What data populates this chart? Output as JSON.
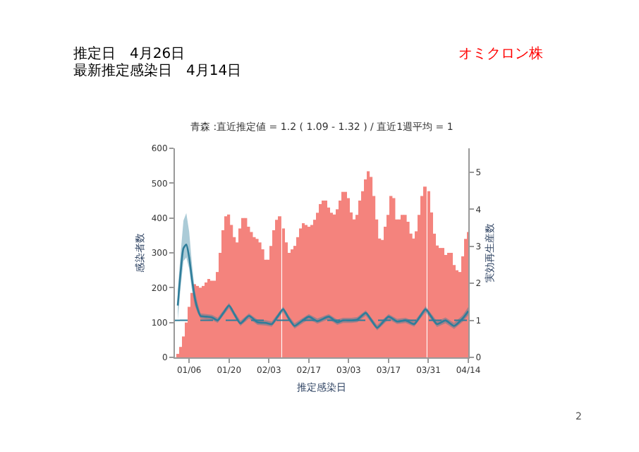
{
  "chart_data": {
    "type": "bar",
    "title": "推定日　4月26日",
    "subtitle": "最新推定感染日　4月14日",
    "annotations": [
      "青森 :直近推定値 = 1.2 ( 1.09 - 1.32 ) / 直近1週平均 = 1",
      "オミクロン株",
      "2"
    ],
    "xlabel": "推定感染日",
    "ylabel": "感染者数",
    "y2label": "実効再生産数",
    "x": [
      "--01-02",
      "--01-03",
      "--01-04",
      "--01-05",
      "--01-06",
      "--01-07",
      "--01-08",
      "--01-09",
      "--01-10",
      "--01-11",
      "--01-12",
      "--01-13",
      "--01-14",
      "--01-15",
      "--01-16",
      "--01-17",
      "--01-18",
      "--01-19",
      "--01-20",
      "--01-21",
      "--01-22",
      "--01-23",
      "--01-24",
      "--01-25",
      "--01-26",
      "--01-27",
      "--01-28",
      "--01-29",
      "--01-30",
      "--01-31",
      "--02-01",
      "--02-02",
      "--02-03",
      "--02-04",
      "--02-05",
      "--02-06",
      "--02-07",
      "--02-08",
      "--02-09",
      "--02-10",
      "--02-11",
      "--02-12",
      "--02-13",
      "--02-14",
      "--02-15",
      "--02-16",
      "--02-17",
      "--02-18",
      "--02-19",
      "--02-20",
      "--02-21",
      "--02-22",
      "--02-23",
      "--02-24",
      "--02-25",
      "--02-26",
      "--02-27",
      "--02-28",
      "--03-01",
      "--03-02",
      "--03-03",
      "--03-04",
      "--03-05",
      "--03-06",
      "--03-07",
      "--03-08",
      "--03-09",
      "--03-10",
      "--03-11",
      "--03-12",
      "--03-13",
      "--03-14",
      "--03-15",
      "--03-16",
      "--03-17",
      "--03-18",
      "--03-19",
      "--03-20",
      "--03-21",
      "--03-22",
      "--03-23",
      "--03-24",
      "--03-25",
      "--03-26",
      "--03-27",
      "--03-28",
      "--03-29",
      "--03-30",
      "--03-31",
      "--04-01",
      "--04-02",
      "--04-03",
      "--04-04",
      "--04-05",
      "--04-06",
      "--04-07",
      "--04-08",
      "--04-09",
      "--04-10",
      "--04-11",
      "--04-12",
      "--04-13",
      "--04-14"
    ],
    "series": [
      {
        "color": "#f4837d",
        "values": [
          10,
          30,
          60,
          100,
          145,
          185,
          210,
          205,
          200,
          205,
          215,
          225,
          220,
          220,
          245,
          300,
          365,
          405,
          410,
          380,
          345,
          330,
          370,
          400,
          400,
          375,
          360,
          345,
          340,
          330,
          310,
          280,
          280,
          320,
          365,
          395,
          405,
          370,
          330,
          300,
          310,
          320,
          345,
          370,
          385,
          380,
          375,
          380,
          395,
          415,
          440,
          450,
          450,
          430,
          415,
          410,
          425,
          450,
          475,
          475,
          457,
          416,
          396,
          409,
          450,
          477,
          511,
          534,
          518,
          463,
          396,
          341,
          337,
          375,
          409,
          463,
          457,
          396,
          396,
          409,
          409,
          389,
          355,
          341,
          362,
          409,
          463,
          490,
          477,
          416,
          355,
          321,
          314,
          314,
          294,
          300,
          300,
          265,
          250,
          245,
          290,
          340,
          360
        ]
      },
      {
        "type": "line",
        "axis": "y2",
        "color": "#2e7d9a",
        "x": [
          "--01-02",
          "--01-03",
          "--01-04",
          "--01-05",
          "--01-06",
          "--01-07",
          "--01-08",
          "--01-09",
          "--01-10",
          "--01-12",
          "--01-14",
          "--01-16",
          "--01-18",
          "--01-20",
          "--01-22",
          "--01-24",
          "--01-27",
          "--01-30",
          "--02-02",
          "--02-04",
          "--02-06",
          "--02-08",
          "--02-10",
          "--02-12",
          "--02-14",
          "--02-17",
          "--02-20",
          "--02-24",
          "--02-27",
          "--03-01",
          "--03-04",
          "--03-06",
          "--03-09",
          "--03-11",
          "--03-13",
          "--03-15",
          "--03-17",
          "--03-20",
          "--03-23",
          "--03-26",
          "--03-28",
          "--03-30",
          "--04-01",
          "--04-03",
          "--04-06",
          "--04-09",
          "--04-12",
          "--04-14"
        ],
        "values": [
          1.4,
          2.3,
          2.95,
          3.05,
          2.7,
          2.1,
          1.6,
          1.3,
          1.12,
          1.1,
          1.08,
          1.0,
          1.2,
          1.4,
          1.15,
          0.92,
          1.12,
          0.95,
          0.93,
          0.9,
          1.1,
          1.3,
          1.05,
          0.85,
          0.95,
          1.1,
          0.98,
          1.1,
          0.95,
          1.0,
          1.0,
          1.02,
          1.2,
          1.0,
          0.8,
          0.95,
          1.1,
          0.97,
          1.0,
          0.9,
          1.1,
          1.3,
          1.1,
          0.9,
          1.0,
          0.85,
          1.05,
          1.25
        ],
        "lower": [
          1.0,
          1.9,
          2.6,
          2.7,
          2.4,
          1.8,
          1.4,
          1.2,
          1.05,
          1.03,
          1.01,
          0.93,
          1.13,
          1.33,
          1.08,
          0.85,
          1.05,
          0.88,
          0.86,
          0.83,
          1.03,
          1.23,
          0.98,
          0.78,
          0.88,
          1.03,
          0.91,
          1.03,
          0.88,
          0.93,
          0.93,
          0.95,
          1.13,
          0.93,
          0.73,
          0.88,
          1.03,
          0.9,
          0.93,
          0.83,
          1.03,
          1.22,
          1.02,
          0.82,
          0.92,
          0.77,
          0.96,
          1.14
        ],
        "upper": [
          1.8,
          2.8,
          3.7,
          3.9,
          3.4,
          2.5,
          1.8,
          1.45,
          1.19,
          1.17,
          1.15,
          1.07,
          1.27,
          1.47,
          1.22,
          0.99,
          1.19,
          1.02,
          1.0,
          0.97,
          1.17,
          1.37,
          1.12,
          0.92,
          1.02,
          1.17,
          1.05,
          1.17,
          1.02,
          1.07,
          1.07,
          1.09,
          1.27,
          1.07,
          0.87,
          1.02,
          1.17,
          1.04,
          1.07,
          0.97,
          1.17,
          1.38,
          1.18,
          0.98,
          1.08,
          0.93,
          1.14,
          1.36
        ]
      }
    ],
    "ref_lines": [
      {
        "axis": "y2",
        "value": 1,
        "color": "#2e7d9a",
        "line_style": "dashed"
      }
    ],
    "xlim": [
      "--01-01",
      "--04-14"
    ],
    "xticks": [
      {
        "value": "--01-06",
        "label": "01/06"
      },
      {
        "value": "--01-20",
        "label": "01/20"
      },
      {
        "value": "--02-03",
        "label": "02/03"
      },
      {
        "value": "--02-17",
        "label": "02/17"
      },
      {
        "value": "--03-03",
        "label": "03/03"
      },
      {
        "value": "--03-17",
        "label": "03/17"
      },
      {
        "value": "--03-31",
        "label": "03/31"
      },
      {
        "value": "--04-14",
        "label": "04/14"
      }
    ],
    "ylim": [
      0,
      600
    ],
    "yticks": [
      0,
      100,
      200,
      300,
      400,
      500,
      600
    ],
    "y2lim": [
      0,
      5.65
    ],
    "y2ticks": [
      0,
      1,
      2,
      3,
      4,
      5
    ]
  }
}
